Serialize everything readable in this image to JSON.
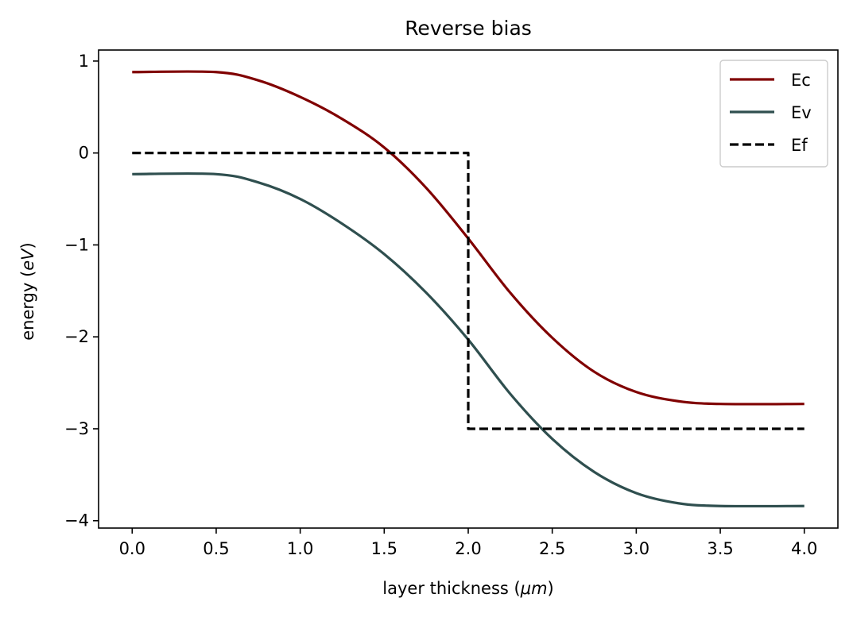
{
  "chart_data": {
    "type": "line",
    "title": "Reverse bias",
    "xlabel_main": "layer thickness (",
    "xlabel_unit": "μm",
    "xlabel_close": ")",
    "ylabel_main": "energy (",
    "ylabel_unit": "eV",
    "ylabel_close": ")",
    "xlim": [
      -0.2,
      4.2
    ],
    "ylim": [
      -4.08,
      1.12
    ],
    "xticks": [
      0.0,
      0.5,
      1.0,
      1.5,
      2.0,
      2.5,
      3.0,
      3.5,
      4.0
    ],
    "xtick_labels": [
      "0.0",
      "0.5",
      "1.0",
      "1.5",
      "2.0",
      "2.5",
      "3.0",
      "3.5",
      "4.0"
    ],
    "yticks": [
      1,
      0,
      -1,
      -2,
      -3,
      -4
    ],
    "ytick_labels": [
      "1",
      "0",
      "−1",
      "−2",
      "−3",
      "−4"
    ],
    "grid": false,
    "legend_position": "top-right",
    "series": [
      {
        "name": "Ec",
        "color": "#800000",
        "style": "solid",
        "x": [
          0.0,
          0.5,
          0.75,
          1.0,
          1.25,
          1.5,
          1.75,
          2.0,
          2.25,
          2.5,
          2.75,
          3.0,
          3.25,
          3.5,
          4.0
        ],
        "y": [
          0.88,
          0.88,
          0.79,
          0.61,
          0.37,
          0.06,
          -0.38,
          -0.93,
          -1.52,
          -2.01,
          -2.38,
          -2.6,
          -2.7,
          -2.73,
          -2.73
        ]
      },
      {
        "name": "Ev",
        "color": "#2f4f4f",
        "style": "solid",
        "x": [
          0.0,
          0.5,
          0.75,
          1.0,
          1.25,
          1.5,
          1.75,
          2.0,
          2.25,
          2.5,
          2.75,
          3.0,
          3.25,
          3.5,
          4.0
        ],
        "y": [
          -0.23,
          -0.23,
          -0.32,
          -0.5,
          -0.77,
          -1.1,
          -1.52,
          -2.03,
          -2.62,
          -3.11,
          -3.47,
          -3.7,
          -3.81,
          -3.84,
          -3.84
        ]
      },
      {
        "name": "Ef",
        "color": "#000000",
        "style": "dashed",
        "x": [
          0.0,
          2.0,
          2.0,
          4.0
        ],
        "y": [
          0.0,
          0.0,
          -3.0,
          -3.0
        ]
      }
    ]
  }
}
